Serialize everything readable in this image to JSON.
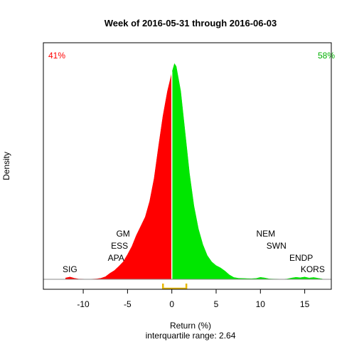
{
  "chart_data": {
    "type": "area",
    "title": "Week of 2016-05-31 through 2016-06-03",
    "xlabel": "Return (%)",
    "ylabel": "Density",
    "subtitle": "interquartile range: 2.64",
    "xlim": [
      -14.5,
      18
    ],
    "ylim": [
      0,
      0.25
    ],
    "xticks": [
      "-10",
      "-5",
      "0",
      "5",
      "10",
      "15"
    ],
    "xtick_values": [
      -10,
      -5,
      0,
      5,
      10,
      15
    ],
    "negative_share": "41%",
    "positive_share": "58%",
    "colors": {
      "negative": "#ff0000",
      "positive": "#00e600",
      "iqr": "#e6b800",
      "axis": "#888888"
    },
    "iqr": [
      -1.0,
      1.64
    ],
    "density": {
      "x": [
        -12.0,
        -11.5,
        -11.0,
        -10.5,
        -10.0,
        -9.5,
        -9.0,
        -8.5,
        -8.0,
        -7.5,
        -7.0,
        -6.5,
        -6.0,
        -5.5,
        -5.0,
        -4.5,
        -4.0,
        -3.5,
        -3.0,
        -2.5,
        -2.0,
        -1.5,
        -1.0,
        -0.5,
        0.0,
        0.3,
        0.5,
        1.0,
        1.5,
        2.0,
        2.5,
        3.0,
        3.5,
        4.0,
        4.5,
        5.0,
        5.5,
        6.0,
        6.5,
        7.0,
        7.5,
        8.0,
        8.5,
        9.0,
        9.5,
        10.0,
        10.5,
        11.0,
        11.5,
        12.0,
        12.5,
        13.0,
        13.5,
        14.0,
        14.5,
        15.0,
        15.5,
        16.0,
        16.5,
        17.0
      ],
      "y": [
        0.0015,
        0.0025,
        0.0012,
        0.0003,
        0.0002,
        0.0001,
        0.0002,
        0.0005,
        0.0012,
        0.0028,
        0.0065,
        0.0095,
        0.014,
        0.019,
        0.027,
        0.036,
        0.048,
        0.058,
        0.068,
        0.085,
        0.11,
        0.145,
        0.178,
        0.205,
        0.225,
        0.235,
        0.232,
        0.205,
        0.16,
        0.115,
        0.08,
        0.055,
        0.038,
        0.026,
        0.019,
        0.015,
        0.0125,
        0.009,
        0.0048,
        0.002,
        0.0012,
        0.001,
        0.0008,
        0.0007,
        0.0009,
        0.0022,
        0.0015,
        0.0005,
        0.0003,
        0.0002,
        0.0001,
        0.0004,
        0.0014,
        0.0022,
        0.0017,
        0.0025,
        0.0014,
        0.002,
        0.0012,
        0.0004
      ]
    },
    "annotations": [
      {
        "label": "SIG",
        "x": -11.5,
        "level": 1
      },
      {
        "label": "APA",
        "x": -6.3,
        "level": 2
      },
      {
        "label": "ESS",
        "x": -5.9,
        "level": 3
      },
      {
        "label": "GM",
        "x": -5.5,
        "level": 4
      },
      {
        "label": "NEM",
        "x": 10.6,
        "level": 4
      },
      {
        "label": "SWN",
        "x": 11.8,
        "level": 3
      },
      {
        "label": "ENDP",
        "x": 14.6,
        "level": 2
      },
      {
        "label": "KORS",
        "x": 15.9,
        "level": 1
      }
    ]
  }
}
